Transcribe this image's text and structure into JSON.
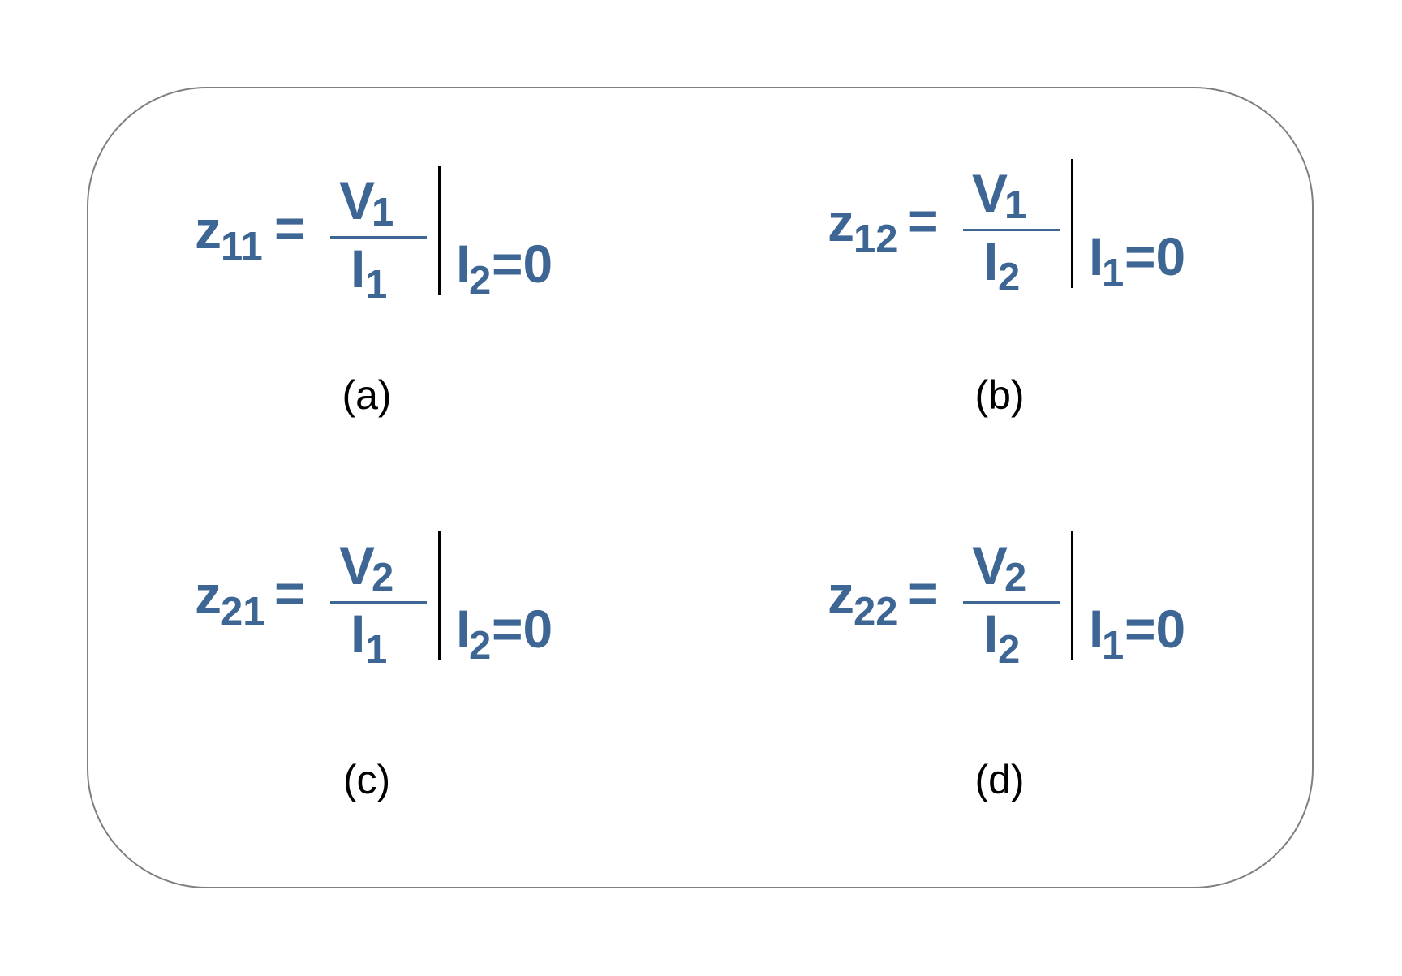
{
  "colors": {
    "equation": "#3d6694",
    "frame": "#7f7f7f",
    "label": "#000000"
  },
  "equations": [
    {
      "id": "a",
      "lhs": "z",
      "lhs_sub": "11",
      "equals": "=",
      "num": "V",
      "num_sub": "1",
      "den": "I",
      "den_sub": "1",
      "cond": "I",
      "cond_sub": "2",
      "cond_rest": "=0",
      "label": "(a)"
    },
    {
      "id": "b",
      "lhs": "z",
      "lhs_sub": "12",
      "equals": "=",
      "num": "V",
      "num_sub": "1",
      "den": "I",
      "den_sub": "2",
      "cond": "I",
      "cond_sub": "1",
      "cond_rest": "=0",
      "label": "(b)"
    },
    {
      "id": "c",
      "lhs": "z",
      "lhs_sub": "21",
      "equals": "=",
      "num": "V",
      "num_sub": "2",
      "den": "I",
      "den_sub": "1",
      "cond": "I",
      "cond_sub": "2",
      "cond_rest": "=0",
      "label": "(c)"
    },
    {
      "id": "d",
      "lhs": "z",
      "lhs_sub": "22",
      "equals": "=",
      "num": "V",
      "num_sub": "2",
      "den": "I",
      "den_sub": "2",
      "cond": "I",
      "cond_sub": "1",
      "cond_rest": "=0",
      "label": "(d)"
    }
  ]
}
